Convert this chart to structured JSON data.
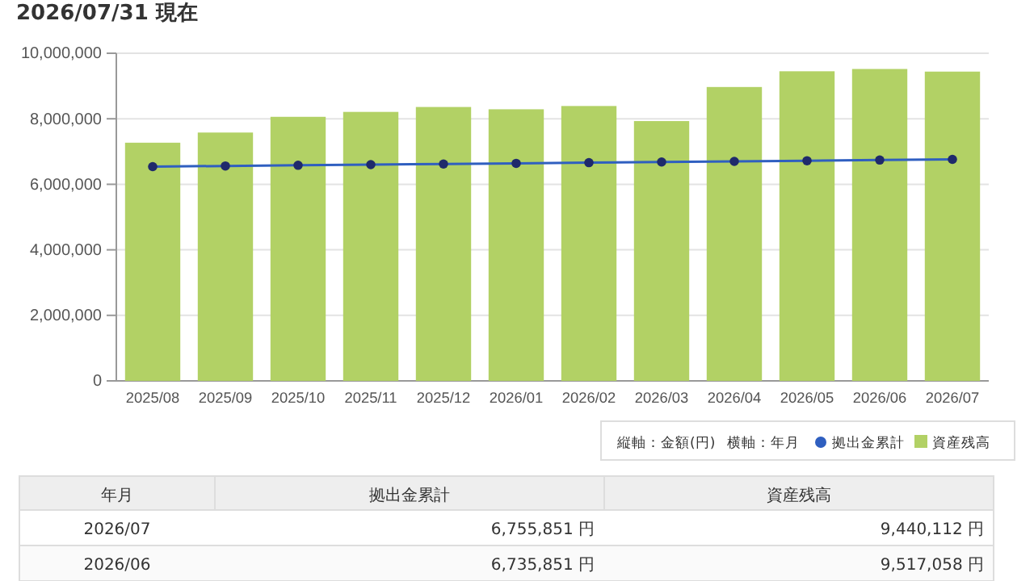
{
  "chart_data": {
    "type": "bar",
    "title": "2026/07/31 現在",
    "categories": [
      "2025/08",
      "2025/09",
      "2025/10",
      "2025/11",
      "2025/12",
      "2026/01",
      "2026/02",
      "2026/03",
      "2026/04",
      "2026/05",
      "2026/06",
      "2026/07"
    ],
    "series": [
      {
        "name": "資産残高",
        "color": "#b2d165",
        "values": [
          7270000,
          7580000,
          8060000,
          8210000,
          8360000,
          8290000,
          8390000,
          7930000,
          8970000,
          9450000,
          9520000,
          9440000
        ]
      },
      {
        "name": "拠出金累計",
        "type": "line",
        "color": "#2f5fc0",
        "values": [
          6540000,
          6560000,
          6580000,
          6600000,
          6620000,
          6640000,
          6660000,
          6680000,
          6700000,
          6720000,
          6740000,
          6760000
        ]
      }
    ],
    "ylim": [
      0,
      10000000
    ],
    "yticks": [
      {
        "value": 0,
        "label": "0"
      },
      {
        "value": 2000000,
        "label": "2,000,000"
      },
      {
        "value": 4000000,
        "label": "4,000,000"
      },
      {
        "value": 6000000,
        "label": "6,000,000"
      },
      {
        "value": 8000000,
        "label": "8,000,000"
      },
      {
        "value": 10000000,
        "label": "10,000,000"
      }
    ],
    "grid": "y",
    "legend": "bottom right",
    "marker": "circle",
    "line_style": "solid",
    "annotations": [
      "縦軸：金額(円)",
      "横軸：年月",
      "年月",
      "2026/07",
      "6,755,851 円",
      "9,440,112 円",
      "2026/06",
      "6,735,851 円",
      "9,517,058 円"
    ]
  }
}
